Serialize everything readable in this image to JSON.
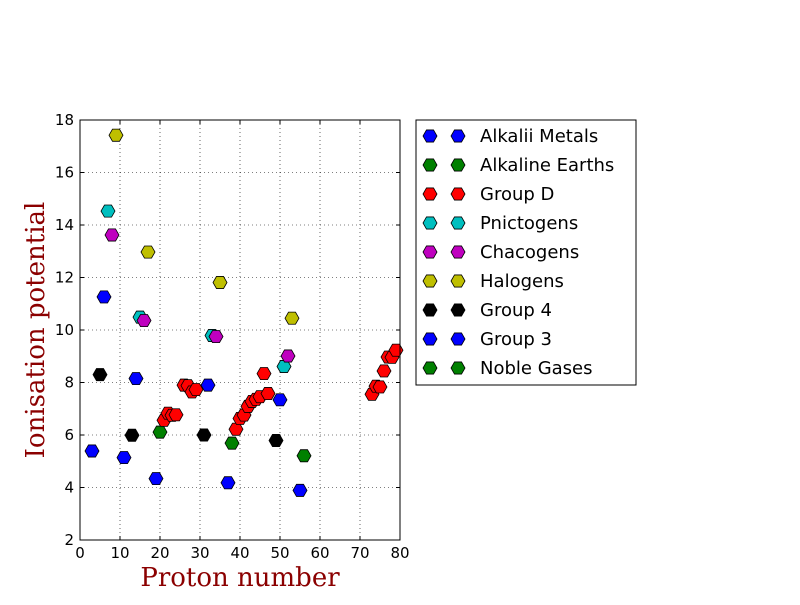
{
  "chart_data": {
    "type": "scatter",
    "xlabel": "Proton number",
    "ylabel": "Ionisation potential",
    "xlim": [
      0,
      80
    ],
    "ylim": [
      2,
      18
    ],
    "xticks": [
      "0",
      "10",
      "20",
      "30",
      "40",
      "50",
      "60",
      "70",
      "80"
    ],
    "yticks": [
      "2",
      "4",
      "6",
      "8",
      "10",
      "12",
      "14",
      "16",
      "18"
    ],
    "grid": true,
    "legend_position": "outside-right",
    "marker": "hexagon",
    "series": [
      {
        "name": "Alkalii Metals",
        "color": "#0000ff",
        "points": [
          [
            3,
            5.39
          ],
          [
            11,
            5.14
          ],
          [
            19,
            4.34
          ],
          [
            37,
            4.18
          ],
          [
            55,
            3.89
          ]
        ]
      },
      {
        "name": "Alkaline Earths",
        "color": "#008000",
        "points": [
          [
            20,
            6.11
          ],
          [
            38,
            5.69
          ],
          [
            56,
            5.21
          ]
        ]
      },
      {
        "name": "Group D",
        "color": "#ff0000",
        "points": [
          [
            21,
            6.56
          ],
          [
            22,
            6.83
          ],
          [
            23,
            6.75
          ],
          [
            24,
            6.77
          ],
          [
            26,
            7.9
          ],
          [
            27,
            7.88
          ],
          [
            28,
            7.64
          ],
          [
            29,
            7.73
          ],
          [
            39,
            6.22
          ],
          [
            40,
            6.63
          ],
          [
            41,
            6.76
          ],
          [
            42,
            7.09
          ],
          [
            43,
            7.28
          ],
          [
            44,
            7.36
          ],
          [
            45,
            7.46
          ],
          [
            46,
            8.34
          ],
          [
            47,
            7.58
          ],
          [
            73,
            7.55
          ],
          [
            74,
            7.86
          ],
          [
            75,
            7.83
          ],
          [
            76,
            8.44
          ],
          [
            77,
            8.97
          ],
          [
            78,
            8.96
          ],
          [
            79,
            9.23
          ]
        ]
      },
      {
        "name": "Pnictogens",
        "color": "#00bfbf",
        "points": [
          [
            7,
            14.53
          ],
          [
            15,
            10.49
          ],
          [
            33,
            9.79
          ],
          [
            51,
            8.61
          ]
        ]
      },
      {
        "name": "Chacogens",
        "color": "#bf00bf",
        "points": [
          [
            8,
            13.62
          ],
          [
            16,
            10.36
          ],
          [
            34,
            9.75
          ],
          [
            52,
            9.01
          ]
        ]
      },
      {
        "name": "Halogens",
        "color": "#bfbf00",
        "points": [
          [
            9,
            17.42
          ],
          [
            17,
            12.97
          ],
          [
            35,
            11.81
          ],
          [
            53,
            10.45
          ]
        ]
      },
      {
        "name": "Group 4",
        "color": "#000000",
        "points": [
          [
            5,
            8.3
          ],
          [
            13,
            5.99
          ],
          [
            31,
            6.0
          ],
          [
            49,
            5.79
          ]
        ]
      },
      {
        "name": "Group 3",
        "color": "#0000ff",
        "points": [
          [
            6,
            11.26
          ],
          [
            14,
            8.15
          ],
          [
            32,
            7.9
          ],
          [
            50,
            7.34
          ]
        ]
      },
      {
        "name": "Noble Gases",
        "color": "#008000",
        "points": []
      }
    ]
  }
}
